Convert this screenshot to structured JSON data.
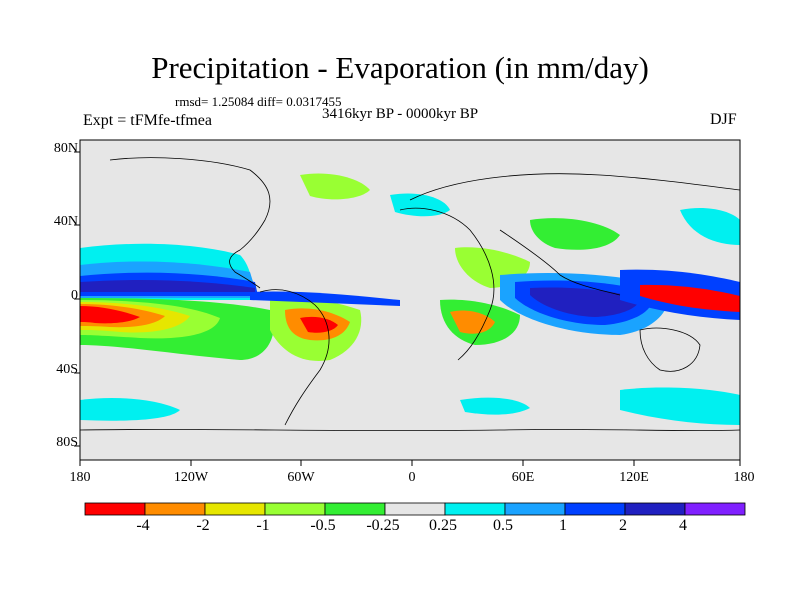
{
  "header": {
    "title": "Precipitation - Evaporation (in mm/day)",
    "stats": "rmsd= 1.25084  diff= 0.0317455",
    "experiment": "Expt = tFMfe-tfmea",
    "period": "3416kyr BP - 0000kyr BP",
    "season": "DJF"
  },
  "map": {
    "projection": "equirectangular",
    "background_color": "#e6e6e6",
    "x_ticks": [
      "180",
      "120W",
      "60W",
      "0",
      "60E",
      "120E",
      "180"
    ],
    "y_ticks": [
      "80N",
      "40N",
      "0",
      "40S",
      "80S"
    ]
  },
  "colorbar": {
    "labels": [
      "-4",
      "-2",
      "-1",
      "-0.5",
      "-0.25",
      "0.25",
      "0.5",
      "1",
      "2",
      "4"
    ],
    "colors": [
      "#ff0000",
      "#ff8c00",
      "#e6e600",
      "#99ff33",
      "#33ee33",
      "#e6e6e6",
      "#00f0f0",
      "#1aa3ff",
      "#0040ff",
      "#2020c0",
      "#8020ff"
    ]
  }
}
